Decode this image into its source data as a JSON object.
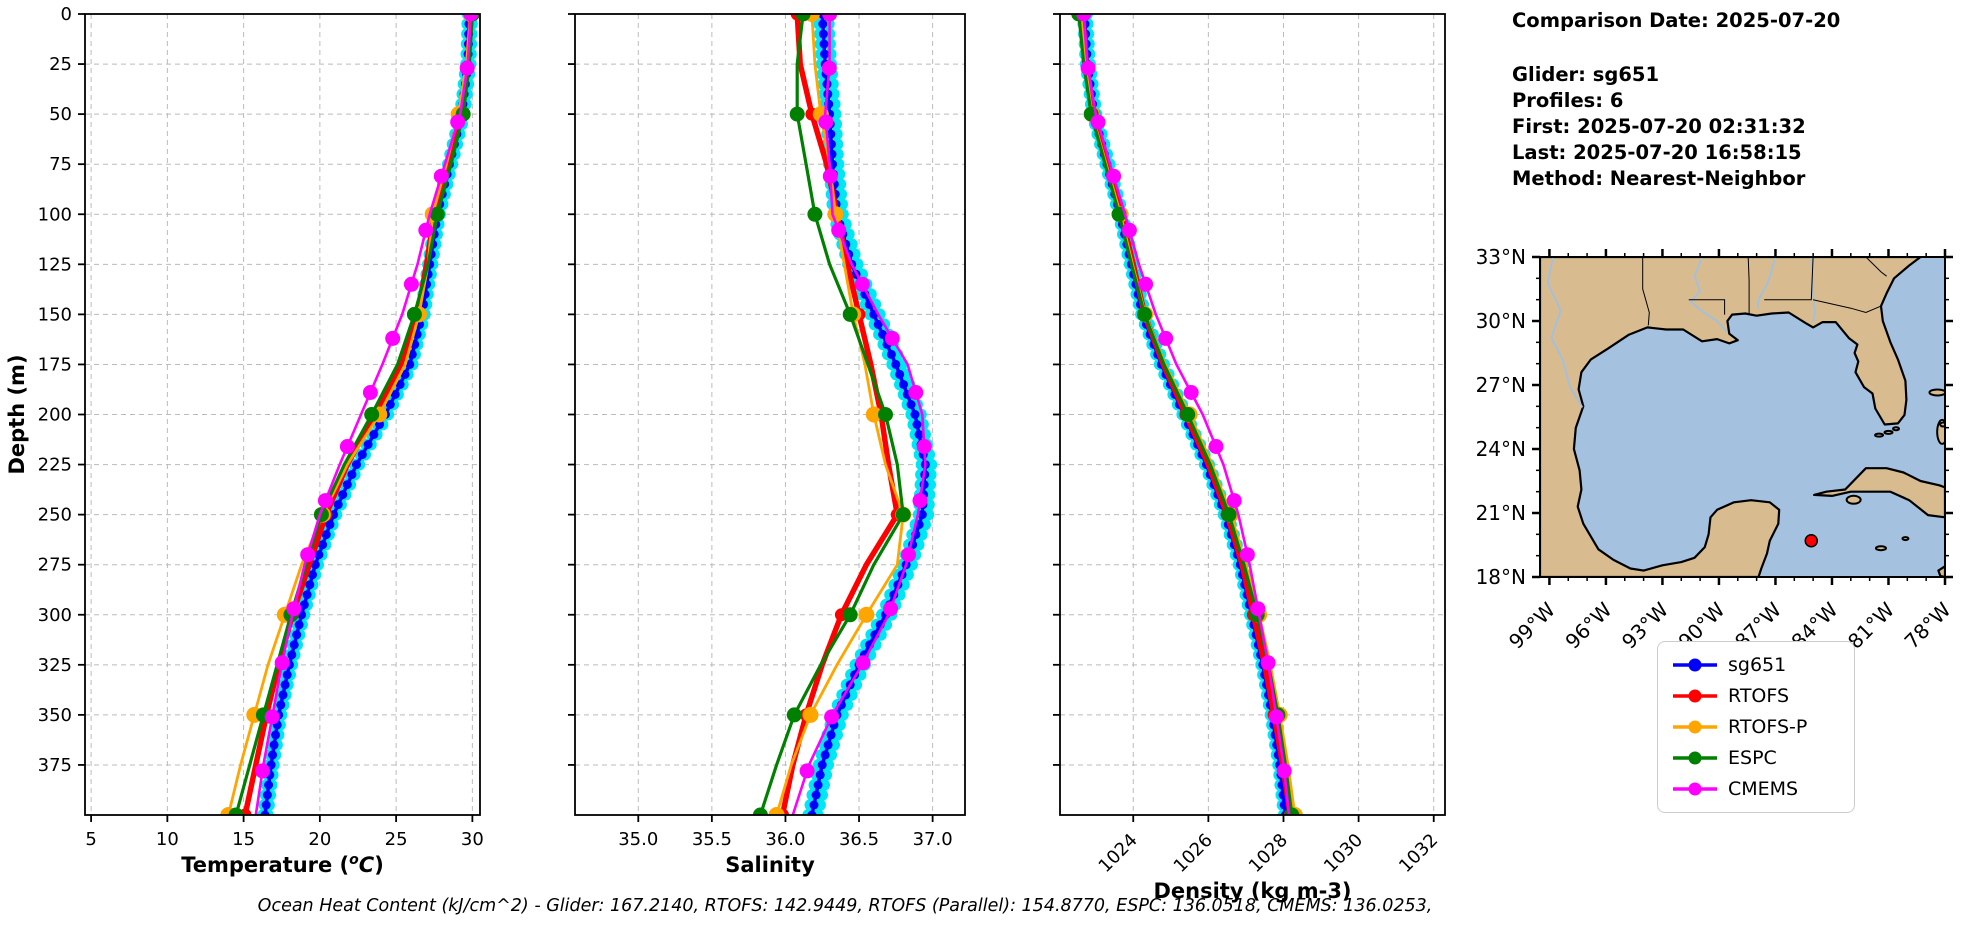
{
  "info_panel": {
    "comparison_date": "Comparison Date: 2025-07-20",
    "glider": "Glider: sg651",
    "profiles": "Profiles: 6",
    "first": "First: 2025-07-20 02:31:32",
    "last": "Last: 2025-07-20 16:58:15",
    "method": "Method: Nearest-Neighbor"
  },
  "caption": "Ocean Heat Content (kJ/cm^2) - Glider: 167.2140,  RTOFS: 142.9449,  RTOFS (Parallel): 154.8770,  ESPC: 136.0518,  CMEMS: 136.0253,",
  "legend": {
    "items": [
      {
        "label": "sg651",
        "color": "#0000ff"
      },
      {
        "label": "RTOFS",
        "color": "#ff0000"
      },
      {
        "label": "RTOFS-P",
        "color": "#ffa500"
      },
      {
        "label": "ESPC",
        "color": "#008000"
      },
      {
        "label": "CMEMS",
        "color": "#ff00ff"
      }
    ]
  },
  "colors": {
    "sg651": "#0000ff",
    "rtofs": "#ff0000",
    "rtofs_p": "#ffa500",
    "espc": "#008000",
    "cmems": "#ff00ff",
    "glider_profiles": "#00e6f2",
    "grid": "#bbbbbb",
    "marker_red": "#ff0000"
  },
  "ylabel": "Depth (m)",
  "yticks": [
    0,
    25,
    50,
    75,
    100,
    125,
    150,
    175,
    200,
    225,
    250,
    275,
    300,
    325,
    350,
    375
  ],
  "ylim": [
    0,
    400
  ],
  "chart_data": [
    {
      "type": "line",
      "title": "",
      "xlabel": "Temperature (°C)",
      "xlabel_superscript_oc": true,
      "ylabel": "Depth (m)",
      "xlim": [
        4.6,
        30.5
      ],
      "xticks": [
        5,
        10,
        15,
        20,
        25,
        30
      ],
      "rotate_xticks": false,
      "grid": true,
      "depths": [
        0,
        25,
        50,
        75,
        100,
        125,
        150,
        175,
        200,
        225,
        250,
        275,
        300,
        325,
        350,
        375,
        400
      ],
      "cyan_delta": 0.18,
      "series": [
        {
          "name": "sg651",
          "color": "#0000ff",
          "lw": 3.5,
          "marker_step": 5,
          "marker_r": 4.5,
          "values": [
            29.8,
            29.7,
            29.3,
            28.5,
            27.7,
            27.2,
            26.7,
            25.9,
            24.3,
            22.4,
            20.9,
            19.7,
            18.8,
            18.0,
            17.3,
            16.8,
            16.4
          ]
        },
        {
          "name": "RTOFS",
          "color": "#ff0000",
          "lw": 5.5,
          "marker_step": 50,
          "marker_r": 6.5,
          "values": [
            29.9,
            29.7,
            29.2,
            28.4,
            27.5,
            27.0,
            26.4,
            25.3,
            23.6,
            21.8,
            20.4,
            19.3,
            18.2,
            17.3,
            16.5,
            15.8,
            15.1
          ]
        },
        {
          "name": "RTOFS-P",
          "color": "#ffa500",
          "lw": 2.8,
          "marker_step": 50,
          "marker_r": 8,
          "values": [
            29.9,
            29.6,
            29.1,
            28.3,
            27.4,
            27.1,
            26.5,
            25.6,
            23.9,
            21.8,
            20.2,
            18.8,
            17.7,
            16.6,
            15.7,
            14.8,
            14.0
          ]
        },
        {
          "name": "ESPC",
          "color": "#008000",
          "lw": 3.2,
          "marker_step": 50,
          "marker_r": 7.5,
          "values": [
            30.0,
            29.8,
            29.4,
            28.6,
            27.7,
            27.1,
            26.2,
            25.1,
            23.4,
            21.6,
            20.1,
            19.1,
            18.1,
            17.2,
            16.3,
            15.4,
            14.5
          ]
        },
        {
          "name": "CMEMS",
          "color": "#ff00ff",
          "lw": 2.6,
          "marker_step": 27,
          "marker_r": 7.5,
          "values": [
            29.9,
            29.7,
            29.2,
            28.2,
            27.2,
            26.4,
            25.4,
            24.1,
            22.7,
            21.3,
            20.0,
            19.0,
            18.2,
            17.5,
            16.9,
            16.3,
            15.8
          ]
        }
      ]
    },
    {
      "type": "line",
      "title": "",
      "xlabel": "Salinity",
      "xlabel_superscript_oc": false,
      "xlim": [
        34.57,
        37.22
      ],
      "xticks": [
        35.0,
        35.5,
        36.0,
        36.5,
        37.0
      ],
      "rotate_xticks": false,
      "grid": true,
      "depths": [
        0,
        25,
        50,
        75,
        100,
        125,
        150,
        175,
        200,
        225,
        250,
        275,
        300,
        325,
        350,
        375,
        400
      ],
      "cyan_delta": 0.04,
      "series": [
        {
          "name": "sg651",
          "color": "#0000ff",
          "lw": 3.5,
          "marker_step": 5,
          "marker_r": 4.5,
          "values": [
            36.25,
            36.27,
            36.3,
            36.32,
            36.35,
            36.45,
            36.6,
            36.75,
            36.88,
            36.95,
            36.93,
            36.82,
            36.68,
            36.5,
            36.35,
            36.25,
            36.18
          ]
        },
        {
          "name": "RTOFS",
          "color": "#ff0000",
          "lw": 5.5,
          "marker_step": 50,
          "marker_r": 6.5,
          "values": [
            36.08,
            36.1,
            36.18,
            36.28,
            36.35,
            36.42,
            36.5,
            36.58,
            36.65,
            36.7,
            36.76,
            36.55,
            36.38,
            36.25,
            36.14,
            36.05,
            35.98
          ]
        },
        {
          "name": "RTOFS-P",
          "color": "#ffa500",
          "lw": 2.8,
          "marker_step": 50,
          "marker_r": 8,
          "values": [
            36.18,
            36.2,
            36.24,
            36.3,
            36.34,
            36.4,
            36.46,
            36.54,
            36.6,
            36.68,
            36.8,
            36.76,
            36.55,
            36.35,
            36.17,
            36.04,
            35.94
          ]
        },
        {
          "name": "ESPC",
          "color": "#008000",
          "lw": 3.2,
          "marker_step": 50,
          "marker_r": 7.5,
          "values": [
            36.12,
            36.08,
            36.08,
            36.14,
            36.2,
            36.3,
            36.44,
            36.56,
            36.68,
            36.76,
            36.8,
            36.6,
            36.44,
            36.24,
            36.06,
            35.94,
            35.83
          ]
        },
        {
          "name": "CMEMS",
          "color": "#ff00ff",
          "lw": 2.6,
          "marker_step": 27,
          "marker_r": 7.5,
          "values": [
            36.3,
            36.3,
            36.27,
            36.3,
            36.32,
            36.45,
            36.63,
            36.83,
            36.93,
            36.95,
            36.9,
            36.82,
            36.7,
            36.52,
            36.32,
            36.16,
            36.05
          ]
        }
      ]
    },
    {
      "type": "line",
      "title": "",
      "xlabel": "Density (kg m-3)",
      "xlabel_superscript_oc": false,
      "xlim": [
        1022.05,
        1032.3
      ],
      "xticks": [
        1024,
        1026,
        1028,
        1030,
        1032
      ],
      "rotate_xticks": true,
      "grid": true,
      "depths": [
        0,
        25,
        50,
        75,
        100,
        125,
        150,
        175,
        200,
        225,
        250,
        275,
        300,
        325,
        350,
        375,
        400
      ],
      "cyan_delta": 0.07,
      "series": [
        {
          "name": "sg651",
          "color": "#0000ff",
          "lw": 3.5,
          "marker_step": 5,
          "marker_r": 4.5,
          "values": [
            1022.7,
            1022.78,
            1022.95,
            1023.3,
            1023.65,
            1023.95,
            1024.25,
            1024.75,
            1025.35,
            1025.95,
            1026.45,
            1026.85,
            1027.15,
            1027.45,
            1027.7,
            1027.9,
            1028.05
          ]
        },
        {
          "name": "RTOFS",
          "color": "#ff0000",
          "lw": 5.5,
          "marker_step": 50,
          "marker_r": 6.5,
          "values": [
            1022.65,
            1022.75,
            1022.95,
            1023.3,
            1023.68,
            1024.0,
            1024.3,
            1024.8,
            1025.4,
            1026.0,
            1026.5,
            1026.9,
            1027.2,
            1027.5,
            1027.75,
            1027.98,
            1028.18
          ]
        },
        {
          "name": "RTOFS-P",
          "color": "#ffa500",
          "lw": 2.8,
          "marker_step": 50,
          "marker_r": 8,
          "values": [
            1022.6,
            1022.72,
            1022.9,
            1023.28,
            1023.66,
            1023.98,
            1024.32,
            1024.85,
            1025.5,
            1026.1,
            1026.6,
            1027.0,
            1027.35,
            1027.65,
            1027.9,
            1028.12,
            1028.3
          ]
        },
        {
          "name": "ESPC",
          "color": "#008000",
          "lw": 3.2,
          "marker_step": 50,
          "marker_r": 7.5,
          "values": [
            1022.55,
            1022.68,
            1022.88,
            1023.25,
            1023.62,
            1023.95,
            1024.3,
            1024.82,
            1025.45,
            1026.05,
            1026.55,
            1026.95,
            1027.3,
            1027.6,
            1027.85,
            1028.05,
            1028.22
          ]
        },
        {
          "name": "CMEMS",
          "color": "#ff00ff",
          "lw": 2.6,
          "marker_step": 27,
          "marker_r": 7.5,
          "values": [
            1022.68,
            1022.78,
            1023.0,
            1023.38,
            1023.78,
            1024.15,
            1024.6,
            1025.15,
            1025.85,
            1026.4,
            1026.8,
            1027.1,
            1027.35,
            1027.6,
            1027.8,
            1028.0,
            1028.15
          ]
        }
      ]
    }
  ],
  "map": {
    "lat_ticks": [
      {
        "label": "33°N",
        "value": 33
      },
      {
        "label": "30°N",
        "value": 30
      },
      {
        "label": "27°N",
        "value": 27
      },
      {
        "label": "24°N",
        "value": 24
      },
      {
        "label": "21°N",
        "value": 21
      },
      {
        "label": "18°N",
        "value": 18
      }
    ],
    "lon_ticks": [
      {
        "label": "99°W",
        "value": -99
      },
      {
        "label": "96°W",
        "value": -96
      },
      {
        "label": "93°W",
        "value": -93
      },
      {
        "label": "90°W",
        "value": -90
      },
      {
        "label": "87°W",
        "value": -87
      },
      {
        "label": "84°W",
        "value": -84
      },
      {
        "label": "81°W",
        "value": -81
      },
      {
        "label": "78°W",
        "value": -78
      }
    ],
    "extent": {
      "lon_min": -99.5,
      "lon_max": -78,
      "lat_min": 18,
      "lat_max": 33
    },
    "marker": {
      "lon": -85.1,
      "lat": 19.7,
      "color": "#ff0000"
    },
    "land_color": "#d8bc90",
    "ocean_color": "#a4c2e0",
    "coast_color": "#000000"
  }
}
